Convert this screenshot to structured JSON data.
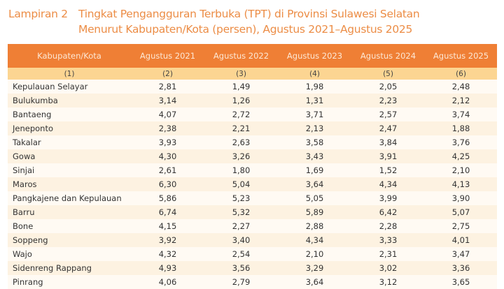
{
  "title": {
    "label": "Lampiran 2",
    "line1": "Tingkat Pengangguran Terbuka (TPT) di Provinsi Sulawesi Selatan",
    "line2": "Menurut Kabupaten/Kota (persen), Agustus 2021–Agustus 2025"
  },
  "colors": {
    "header": "#ef7f35",
    "subheader": "#fcd592",
    "title": "#ec8d46"
  },
  "table": {
    "headers": [
      "Kabupaten/Kota",
      "Agustus 2021",
      "Agustus 2022",
      "Agustus 2023",
      "Agustus 2024",
      "Agustus 2025"
    ],
    "column_numbers": [
      "(1)",
      "(2)",
      "(3)",
      "(4)",
      "(5)",
      "(6)"
    ],
    "rows": [
      [
        "Kepulauan Selayar",
        "2,81",
        "1,49",
        "1,98",
        "2,05",
        "2,48"
      ],
      [
        "Bulukumba",
        "3,14",
        "1,26",
        "1,31",
        "2,23",
        "2,12"
      ],
      [
        "Bantaeng",
        "4,07",
        "2,72",
        "3,71",
        "2,57",
        "3,74"
      ],
      [
        "Jeneponto",
        "2,38",
        "2,21",
        "2,13",
        "2,47",
        "1,88"
      ],
      [
        "Takalar",
        "3,93",
        "2,63",
        "3,58",
        "3,84",
        "3,76"
      ],
      [
        "Gowa",
        "4,30",
        "3,26",
        "3,43",
        "3,91",
        "4,25"
      ],
      [
        "Sinjai",
        "2,61",
        "1,80",
        "1,69",
        "1,52",
        "2,10"
      ],
      [
        "Maros",
        "6,30",
        "5,04",
        "3,64",
        "4,34",
        "4,13"
      ],
      [
        "Pangkajene dan Kepulauan",
        "5,86",
        "5,23",
        "5,05",
        "3,99",
        "3,90"
      ],
      [
        "Barru",
        "6,74",
        "5,32",
        "5,89",
        "6,42",
        "5,07"
      ],
      [
        "Bone",
        "4,15",
        "2,27",
        "2,88",
        "2,28",
        "2,75"
      ],
      [
        "Soppeng",
        "3,92",
        "3,40",
        "4,34",
        "3,33",
        "4,01"
      ],
      [
        "Wajo",
        "4,32",
        "2,54",
        "2,10",
        "2,31",
        "3,47"
      ],
      [
        "Sidenreng Rappang",
        "4,93",
        "3,56",
        "3,29",
        "3,02",
        "3,36"
      ],
      [
        "Pinrang",
        "4,06",
        "2,79",
        "3,64",
        "3,12",
        "3,65"
      ]
    ]
  }
}
